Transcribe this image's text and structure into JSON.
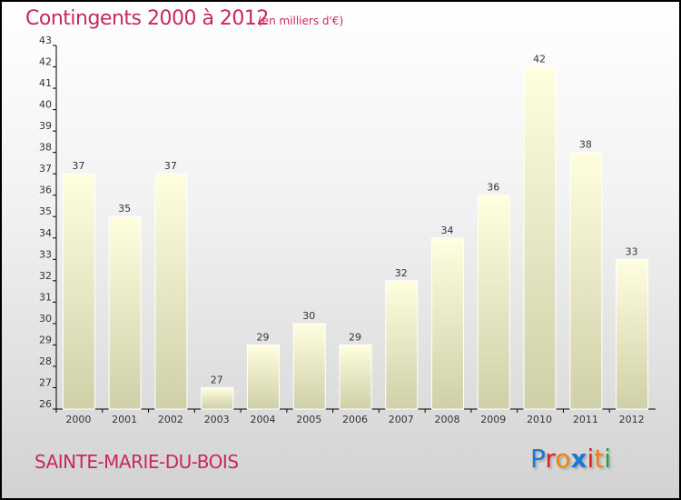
{
  "chart_data": {
    "type": "bar",
    "title": "Contingents 2000 à 2012",
    "subtitle": "(en milliers d'€)",
    "categories": [
      "2000",
      "2001",
      "2002",
      "2003",
      "2004",
      "2005",
      "2006",
      "2007",
      "2008",
      "2009",
      "2010",
      "2011",
      "2012"
    ],
    "values": [
      37,
      35,
      37,
      27,
      29,
      30,
      29,
      32,
      34,
      36,
      42,
      38,
      33
    ],
    "ylim": [
      26,
      43
    ],
    "yticks": [
      26,
      27,
      28,
      29,
      30,
      31,
      32,
      33,
      34,
      35,
      36,
      37,
      38,
      39,
      40,
      41,
      42,
      43
    ],
    "xlabel": "",
    "ylabel": "",
    "grid": false
  },
  "footer": {
    "place": "SAINTE-MARIE-DU-BOIS",
    "brand": [
      "P",
      "r",
      "o",
      "x",
      "i",
      "t",
      "i"
    ]
  },
  "colors": {
    "title": "#c8285a",
    "brand": [
      "#1a7ad0",
      "#e02020",
      "#f08010",
      "#1a7ad0",
      "#e02020",
      "#f08010",
      "#20a040"
    ]
  }
}
